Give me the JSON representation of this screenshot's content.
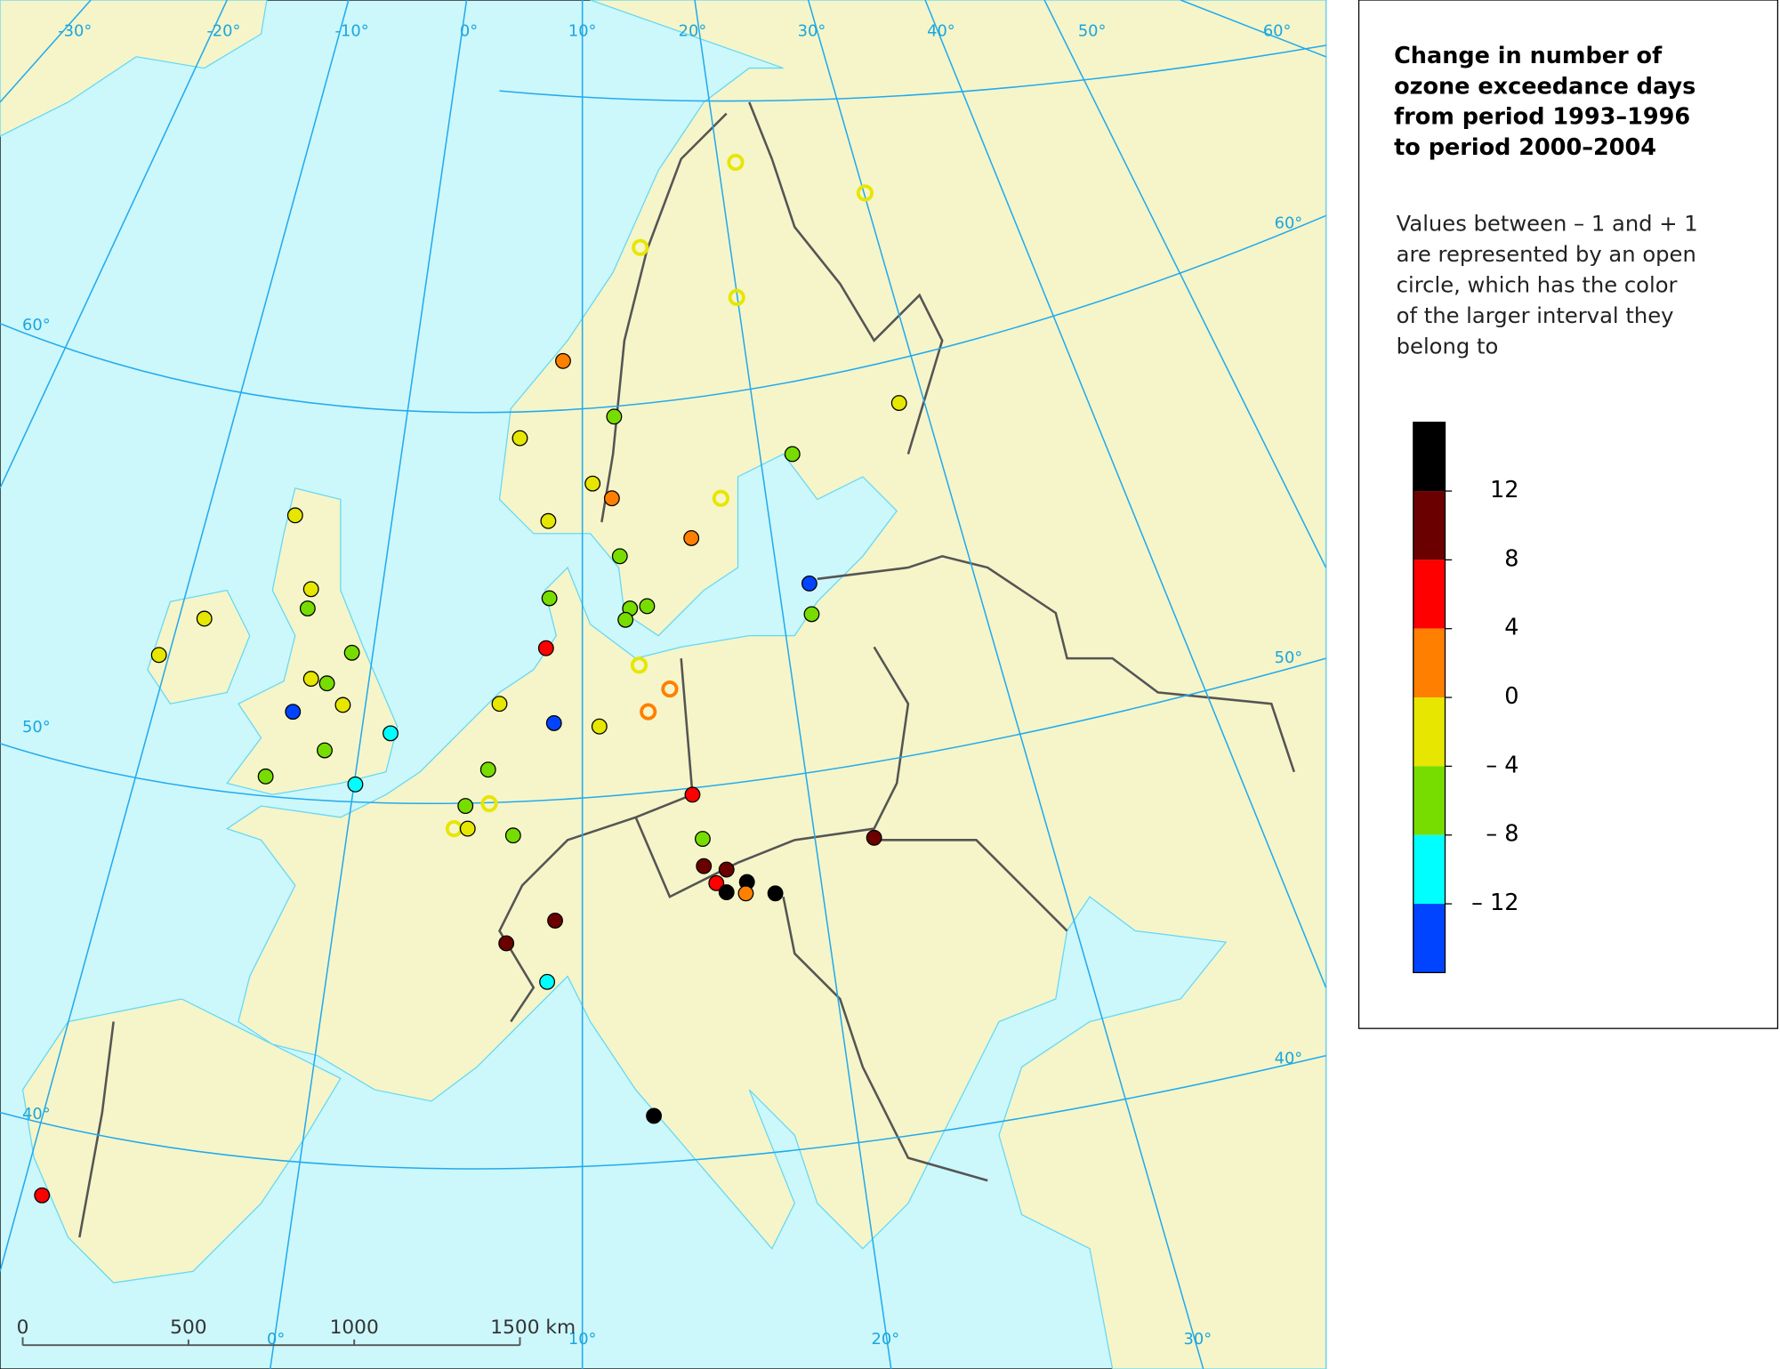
{
  "legend": {
    "title": [
      "Change in number of",
      "ozone exceedance days",
      "from period 1993–1996",
      "to period 2000–2004"
    ],
    "note": [
      "Values between – 1 and + 1",
      "are represented by an open",
      "circle, which has the color",
      "of the larger interval they",
      "belong to"
    ],
    "classes": [
      {
        "color": "#000000"
      },
      {
        "color": "#6b0000"
      },
      {
        "color": "#ff0000"
      },
      {
        "color": "#ff7f00"
      },
      {
        "color": "#e6e600"
      },
      {
        "color": "#77dd00"
      },
      {
        "color": "#00ffff"
      },
      {
        "color": "#0044ff"
      }
    ],
    "class_labels": [
      "12",
      "8",
      "4",
      "0",
      "– 4",
      "– 8",
      "– 12"
    ]
  },
  "map": {
    "graticule_labels": [
      "-30°",
      "-20°",
      "-10°",
      "0°",
      "10°",
      "20°",
      "30°",
      "40°",
      "50°",
      "60°",
      "60°",
      "50°",
      "40°",
      "60°",
      "50°",
      "40°",
      "0°",
      "10°",
      "20°",
      "30°"
    ],
    "scale_bar": [
      "0",
      "500",
      "1000",
      "1500 km"
    ]
  }
}
